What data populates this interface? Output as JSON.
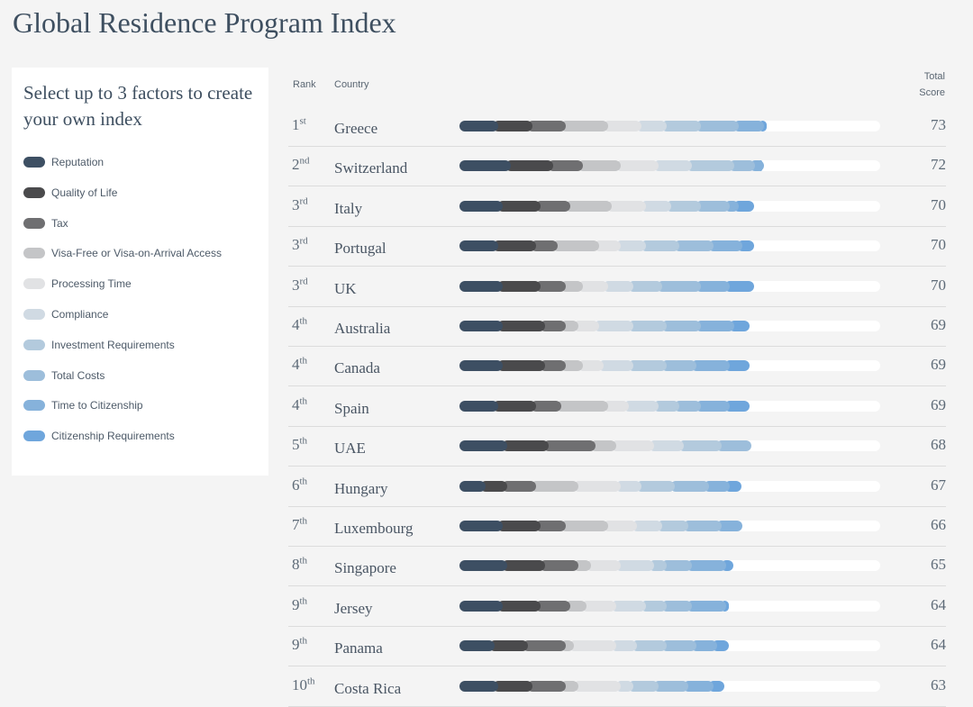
{
  "title": "Global Residence Program Index",
  "panel": {
    "heading": "Select up to 3 factors to create your own index"
  },
  "legend": [
    {
      "label": "Reputation",
      "color": "#3d4f63"
    },
    {
      "label": "Quality of Life",
      "color": "#4a4a4c"
    },
    {
      "label": "Tax",
      "color": "#6f6f71"
    },
    {
      "label": "Visa-Free or Visa-on-Arrival Access",
      "color": "#c4c5c7"
    },
    {
      "label": "Processing Time",
      "color": "#e1e2e4"
    },
    {
      "label": "Compliance",
      "color": "#d0dae3"
    },
    {
      "label": "Investment Requirements",
      "color": "#b3cadd"
    },
    {
      "label": "Total Costs",
      "color": "#9dbedb"
    },
    {
      "label": "Time to Citizenship",
      "color": "#86b2db"
    },
    {
      "label": "Citizenship Requirements",
      "color": "#6fa6dc"
    }
  ],
  "columns": {
    "rank": "Rank",
    "country": "Country",
    "score_line1": "Total",
    "score_line2": "Score"
  },
  "chart_data": {
    "type": "bar",
    "stacked": true,
    "orientation": "horizontal",
    "title": "Global Residence Program Index",
    "xlim": [
      0,
      100
    ],
    "series_names": [
      "Reputation",
      "Quality of Life",
      "Tax",
      "Visa-Free or Visa-on-Arrival Access",
      "Processing Time",
      "Compliance",
      "Investment Requirements",
      "Total Costs",
      "Time to Citizenship",
      "Citizenship Requirements"
    ],
    "rows": [
      {
        "rank": "1",
        "suffix": "st",
        "country": "Greece",
        "score": "73",
        "values": [
          8,
          8,
          8,
          10,
          8,
          6,
          8,
          9,
          6,
          2
        ]
      },
      {
        "rank": "2",
        "suffix": "nd",
        "country": "Switzerland",
        "score": "72",
        "values": [
          11,
          10,
          7,
          9,
          9,
          8,
          10,
          5,
          2,
          1
        ]
      },
      {
        "rank": "3",
        "suffix": "rd",
        "country": "Italy",
        "score": "70",
        "values": [
          9,
          9,
          7,
          10,
          8,
          6,
          7,
          7,
          2,
          5
        ]
      },
      {
        "rank": "3",
        "suffix": "rd",
        "country": "Portugal",
        "score": "70",
        "values": [
          8,
          9,
          5,
          10,
          5,
          6,
          8,
          8,
          7,
          4
        ]
      },
      {
        "rank": "3",
        "suffix": "rd",
        "country": "UK",
        "score": "70",
        "values": [
          9,
          9,
          6,
          4,
          6,
          6,
          7,
          9,
          7,
          7
        ]
      },
      {
        "rank": "4",
        "suffix": "th",
        "country": "Australia",
        "score": "69",
        "values": [
          9,
          10,
          5,
          3,
          5,
          8,
          8,
          8,
          8,
          5
        ]
      },
      {
        "rank": "4",
        "suffix": "th",
        "country": "Canada",
        "score": "69",
        "values": [
          9,
          10,
          5,
          4,
          5,
          7,
          8,
          7,
          8,
          6
        ]
      },
      {
        "rank": "4",
        "suffix": "th",
        "country": "Spain",
        "score": "69",
        "values": [
          8,
          9,
          6,
          11,
          5,
          7,
          5,
          5,
          7,
          6
        ]
      },
      {
        "rank": "5",
        "suffix": "th",
        "country": "UAE",
        "score": "68",
        "values": [
          10,
          10,
          11,
          5,
          9,
          7,
          9,
          7,
          0,
          0
        ]
      },
      {
        "rank": "6",
        "suffix": "th",
        "country": "Hungary",
        "score": "67",
        "values": [
          5,
          5,
          7,
          10,
          10,
          5,
          8,
          8,
          5,
          4
        ]
      },
      {
        "rank": "7",
        "suffix": "th",
        "country": "Luxembourg",
        "score": "66",
        "values": [
          9,
          9,
          6,
          10,
          7,
          6,
          6,
          8,
          5,
          0
        ]
      },
      {
        "rank": "8",
        "suffix": "th",
        "country": "Singapore",
        "score": "65",
        "values": [
          10,
          9,
          8,
          3,
          7,
          8,
          3,
          6,
          8,
          3
        ]
      },
      {
        "rank": "9",
        "suffix": "th",
        "country": "Jersey",
        "score": "64",
        "values": [
          9,
          9,
          7,
          4,
          7,
          7,
          5,
          6,
          8,
          2
        ]
      },
      {
        "rank": "9",
        "suffix": "th",
        "country": "Panama",
        "score": "64",
        "values": [
          7,
          8,
          9,
          2,
          10,
          5,
          7,
          7,
          5,
          4
        ]
      },
      {
        "rank": "10",
        "suffix": "th",
        "country": "Costa Rica",
        "score": "63",
        "values": [
          8,
          8,
          8,
          3,
          10,
          3,
          6,
          7,
          6,
          4
        ]
      }
    ]
  }
}
